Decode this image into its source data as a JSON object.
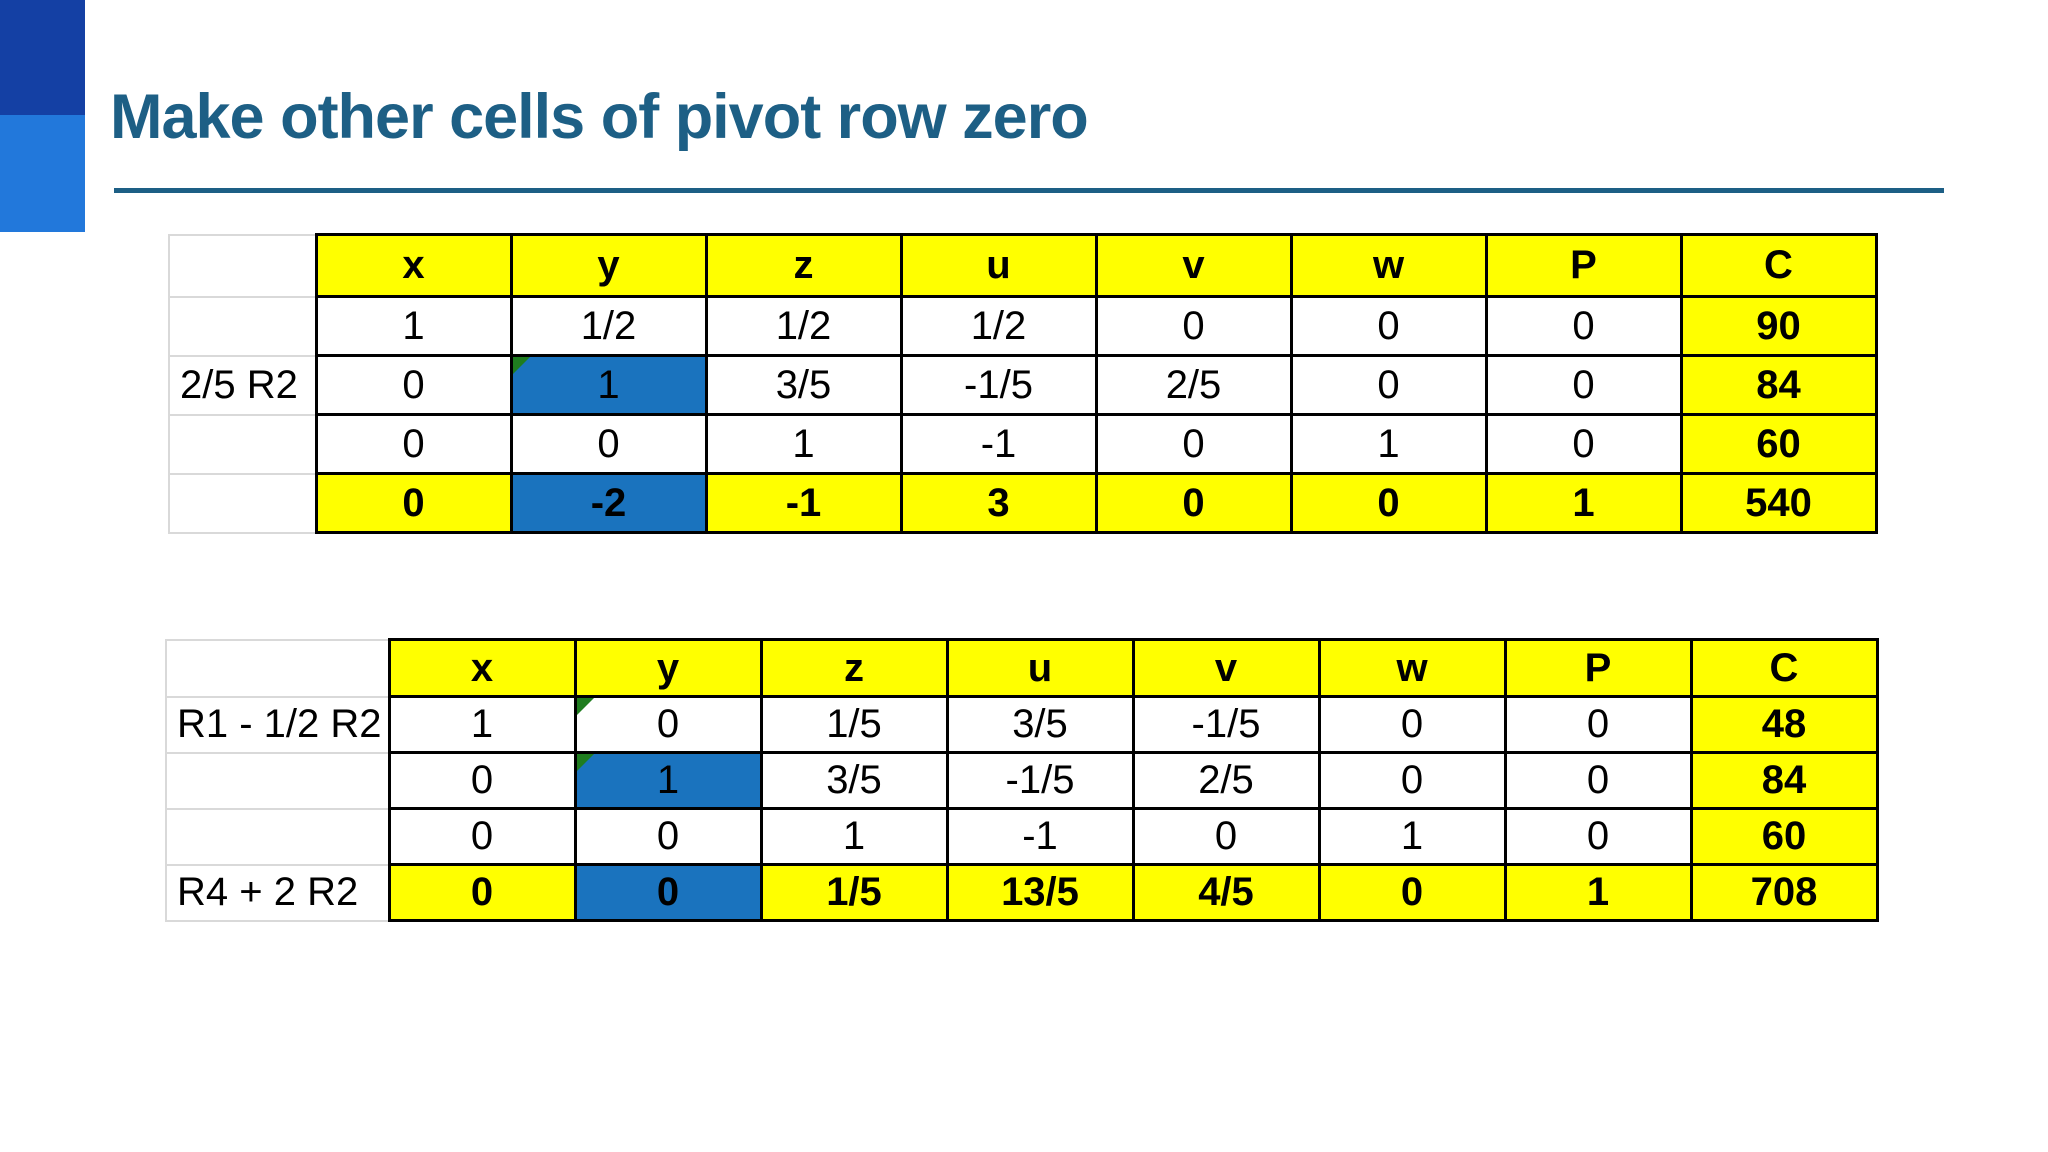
{
  "title": "Make other cells of pivot row zero",
  "colors": {
    "accent": "#1D5F85",
    "header_fill": "#FFFF00",
    "pivot_fill": "#1A73BE",
    "flag": "#1F7D1F",
    "square_dark": "#1440A4",
    "square_light": "#2278DB"
  },
  "tables": [
    {
      "name": "tableau-before",
      "headers": [
        "x",
        "y",
        "z",
        "u",
        "v",
        "w",
        "P",
        "C"
      ],
      "rows": [
        {
          "label": "",
          "cells": [
            {
              "t": "1"
            },
            {
              "t": "1/2"
            },
            {
              "t": "1/2"
            },
            {
              "t": "1/2"
            },
            {
              "t": "0"
            },
            {
              "t": "0"
            },
            {
              "t": "0"
            },
            {
              "t": "90",
              "bg": "yellow",
              "b": true
            }
          ]
        },
        {
          "label": "2/5 R2",
          "cells": [
            {
              "t": "0"
            },
            {
              "t": "1",
              "bg": "blue",
              "f": true
            },
            {
              "t": "3/5"
            },
            {
              "t": "-1/5"
            },
            {
              "t": "2/5"
            },
            {
              "t": "0"
            },
            {
              "t": "0"
            },
            {
              "t": "84",
              "bg": "yellow",
              "b": true
            }
          ]
        },
        {
          "label": "",
          "cells": [
            {
              "t": "0"
            },
            {
              "t": "0"
            },
            {
              "t": "1"
            },
            {
              "t": "-1"
            },
            {
              "t": "0"
            },
            {
              "t": "1"
            },
            {
              "t": "0"
            },
            {
              "t": "60",
              "bg": "yellow",
              "b": true
            }
          ]
        },
        {
          "label": "",
          "cells": [
            {
              "t": "0",
              "bg": "yellow",
              "b": true
            },
            {
              "t": "-2",
              "bg": "blue",
              "b": true
            },
            {
              "t": "-1",
              "bg": "yellow",
              "b": true
            },
            {
              "t": "3",
              "bg": "yellow",
              "b": true
            },
            {
              "t": "0",
              "bg": "yellow",
              "b": true
            },
            {
              "t": "0",
              "bg": "yellow",
              "b": true
            },
            {
              "t": "1",
              "bg": "yellow",
              "b": true
            },
            {
              "t": "540",
              "bg": "yellow",
              "b": true
            }
          ]
        }
      ]
    },
    {
      "name": "tableau-after",
      "headers": [
        "x",
        "y",
        "z",
        "u",
        "v",
        "w",
        "P",
        "C"
      ],
      "rows": [
        {
          "label": "R1 - 1/2 R2",
          "cells": [
            {
              "t": "1"
            },
            {
              "t": "0",
              "f": true
            },
            {
              "t": "1/5"
            },
            {
              "t": "3/5"
            },
            {
              "t": "-1/5"
            },
            {
              "t": "0"
            },
            {
              "t": "0"
            },
            {
              "t": "48",
              "bg": "yellow",
              "b": true
            }
          ]
        },
        {
          "label": "",
          "cells": [
            {
              "t": "0"
            },
            {
              "t": "1",
              "bg": "blue",
              "f": true
            },
            {
              "t": "3/5"
            },
            {
              "t": "-1/5"
            },
            {
              "t": "2/5"
            },
            {
              "t": "0"
            },
            {
              "t": "0"
            },
            {
              "t": "84",
              "bg": "yellow",
              "b": true
            }
          ]
        },
        {
          "label": "",
          "cells": [
            {
              "t": "0"
            },
            {
              "t": "0"
            },
            {
              "t": "1"
            },
            {
              "t": "-1"
            },
            {
              "t": "0"
            },
            {
              "t": "1"
            },
            {
              "t": "0"
            },
            {
              "t": "60",
              "bg": "yellow",
              "b": true
            }
          ]
        },
        {
          "label": "R4 + 2 R2",
          "cells": [
            {
              "t": "0",
              "bg": "yellow",
              "b": true
            },
            {
              "t": "0",
              "bg": "blue",
              "b": true
            },
            {
              "t": "1/5",
              "bg": "yellow",
              "b": true
            },
            {
              "t": "13/5",
              "bg": "yellow",
              "b": true
            },
            {
              "t": "4/5",
              "bg": "yellow",
              "b": true
            },
            {
              "t": "0",
              "bg": "yellow",
              "b": true
            },
            {
              "t": "1",
              "bg": "yellow",
              "b": true
            },
            {
              "t": "708",
              "bg": "yellow",
              "b": true
            }
          ]
        }
      ]
    }
  ]
}
